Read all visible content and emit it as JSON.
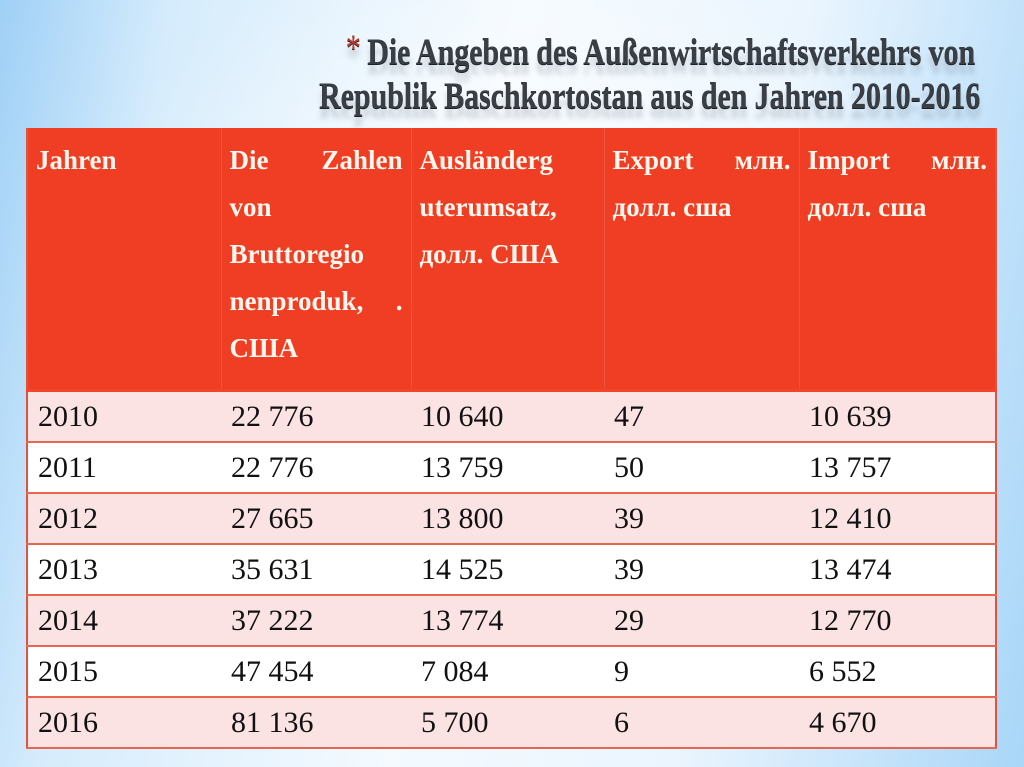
{
  "slide": {
    "title_star": "*",
    "title_line1": "Die Angeben des Außenwirtschaftsverkehrs von",
    "title_line2": "Republik Baschkortostan aus den Jahren 2010-2016"
  },
  "colors": {
    "header_bg": "#ef3e23",
    "header_text": "#fff6ee",
    "row_odd_bg": "#fbe3e4",
    "row_even_bg": "#ffffff",
    "border": "#e8654e",
    "title_star": "#c0392b",
    "title_text": "#3a3e45",
    "background": "#d6ecfc"
  },
  "table": {
    "headers": [
      "Jahren",
      "Die Zahlen von Bruttoregio nenproduk, . США",
      "Ausländerg uterumsatz, долл. США",
      "Export млн. долл. сша",
      "Import млн. долл. сша"
    ],
    "rows": [
      [
        "2010",
        "22 776",
        "10 640",
        "47",
        "10 639"
      ],
      [
        "2011",
        "22 776",
        "13 759",
        "50",
        "13 757"
      ],
      [
        "2012",
        "27 665",
        "13 800",
        "39",
        "12 410"
      ],
      [
        "2013",
        "35 631",
        "14 525",
        "39",
        "13 474"
      ],
      [
        "2014",
        "37 222",
        "13 774",
        "29",
        "12 770"
      ],
      [
        "2015",
        "47 454",
        "7 084",
        "9",
        "6 552"
      ],
      [
        "2016",
        "81 136",
        "5 700",
        "6",
        "4 670"
      ]
    ]
  },
  "chart_data": {
    "type": "table",
    "title": "Die Angeben des Außenwirtschaftsverkehrs von Republik Baschkortostan aus den Jahren 2010-2016",
    "columns": [
      "Jahren",
      "Die Zahlen von Bruttoregionenproduk, . США",
      "Ausländerguterumsatz, долл. США",
      "Export млн. долл. сша",
      "Import млн. долл. сша"
    ],
    "categories": [
      "2010",
      "2011",
      "2012",
      "2013",
      "2014",
      "2015",
      "2016"
    ],
    "series": [
      {
        "name": "Bruttoregionenprodukt",
        "values": [
          22776,
          22776,
          27665,
          35631,
          37222,
          47454,
          81136
        ]
      },
      {
        "name": "Ausländerguterumsatz",
        "values": [
          10640,
          13759,
          13800,
          14525,
          13774,
          7084,
          5700
        ]
      },
      {
        "name": "Export",
        "values": [
          47,
          50,
          39,
          39,
          29,
          9,
          6
        ]
      },
      {
        "name": "Import",
        "values": [
          10639,
          13757,
          12410,
          13474,
          12770,
          6552,
          4670
        ]
      }
    ]
  }
}
